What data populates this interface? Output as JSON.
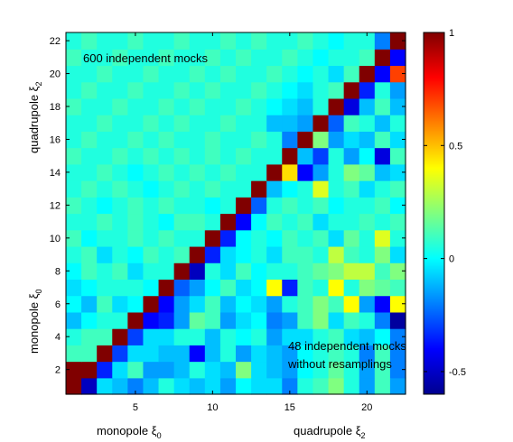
{
  "chart_data": {
    "type": "heatmap",
    "title": "",
    "colormap": "jet",
    "clim": [
      -0.6,
      1
    ],
    "grid": false,
    "n": 22,
    "x_ticks": [
      5,
      10,
      15,
      20
    ],
    "y_ticks": [
      2,
      4,
      6,
      8,
      10,
      12,
      14,
      16,
      18,
      20,
      22
    ],
    "colorbar_ticks": [
      {
        "value": 1,
        "label": "1"
      },
      {
        "value": 0.5,
        "label": "0.5"
      },
      {
        "value": 0,
        "label": "0"
      },
      {
        "value": -0.5,
        "label": "-0.5"
      }
    ],
    "x_sections": [
      {
        "label": "monopole",
        "sym": "ξ",
        "sub": "0"
      },
      {
        "label": "quadrupole",
        "sym": "ξ",
        "sub": "2"
      }
    ],
    "y_sections": [
      {
        "label": "monopole",
        "sym": "ξ",
        "sub": "0"
      },
      {
        "label": "quadrupole",
        "sym": "ξ",
        "sub": "2"
      }
    ],
    "annotations": {
      "upper": "600 independent mocks",
      "lower_line1": "48 independent mocks",
      "lower_line2": "without resamplings"
    },
    "matrix": [
      [
        1.0,
        -0.5,
        -0.05,
        -0.1,
        -0.2,
        -0.1,
        0.05,
        -0.05,
        -0.1,
        -0.05,
        -0.15,
        0.0,
        -0.05,
        -0.05,
        -0.2,
        0.05,
        0.1,
        0.2,
        0.05,
        -0.15,
        0.1,
        -0.15
      ],
      [
        1.0,
        1.0,
        -0.35,
        -0.05,
        0.1,
        -0.15,
        -0.15,
        -0.1,
        0.05,
        -0.05,
        -0.1,
        0.2,
        -0.05,
        -0.1,
        -0.15,
        0.0,
        0.05,
        0.15,
        0.05,
        -0.15,
        0.1,
        -0.2
      ],
      [
        0.1,
        0.1,
        1.0,
        -0.3,
        -0.05,
        -0.05,
        -0.1,
        -0.1,
        -0.4,
        -0.1,
        0.05,
        -0.15,
        -0.05,
        -0.1,
        -0.15,
        0.0,
        0.05,
        0.1,
        0.05,
        -0.2,
        0.1,
        -0.2
      ],
      [
        0.05,
        0.1,
        0.1,
        1.0,
        -0.3,
        -0.05,
        -0.05,
        0.05,
        0.05,
        -0.1,
        0.05,
        0.0,
        0.05,
        -0.15,
        -0.05,
        -0.05,
        0.05,
        0.1,
        -0.05,
        -0.1,
        0.0,
        -0.2
      ],
      [
        -0.1,
        0.0,
        0.05,
        0.05,
        1.0,
        -0.4,
        -0.35,
        -0.15,
        0.15,
        0.1,
        -0.15,
        -0.05,
        0.0,
        -0.2,
        -0.15,
        0.1,
        0.2,
        -0.05,
        0.1,
        0.05,
        -0.2,
        -0.55
      ],
      [
        0.0,
        -0.1,
        0.1,
        -0.05,
        0.0,
        1.0,
        -0.4,
        -0.15,
        -0.05,
        0.1,
        -0.1,
        0.0,
        -0.05,
        -0.15,
        0.05,
        0.1,
        0.2,
        0.1,
        0.4,
        -0.15,
        -0.4,
        0.4
      ],
      [
        -0.05,
        0.0,
        0.05,
        0.05,
        0.05,
        0.0,
        1.0,
        -0.25,
        -0.15,
        0.0,
        0.1,
        -0.05,
        0.0,
        0.4,
        -0.35,
        0.1,
        0.05,
        0.4,
        0.05,
        0.2,
        0.15,
        0.1
      ],
      [
        0.0,
        0.1,
        0.05,
        0.1,
        -0.05,
        0.05,
        0.05,
        1.0,
        -0.5,
        0.05,
        -0.05,
        0.1,
        0.0,
        0.05,
        0.05,
        0.1,
        0.15,
        0.2,
        0.3,
        0.3,
        0.1,
        0.2
      ],
      [
        0.05,
        0.1,
        -0.05,
        0.05,
        0.0,
        0.1,
        0.05,
        0.1,
        1.0,
        -0.35,
        -0.05,
        0.0,
        0.05,
        -0.05,
        0.1,
        0.1,
        0.05,
        0.3,
        0.1,
        0.05,
        0.2,
        -0.05
      ],
      [
        0.1,
        0.0,
        0.05,
        0.05,
        0.1,
        0.05,
        0.1,
        0.05,
        0.05,
        1.0,
        -0.35,
        0.0,
        0.05,
        0.0,
        0.1,
        0.05,
        0.1,
        -0.05,
        0.15,
        0.05,
        0.35,
        0.05
      ],
      [
        0.05,
        0.05,
        0.1,
        0.05,
        0.1,
        0.05,
        0.0,
        0.1,
        0.1,
        0.05,
        1.0,
        -0.4,
        0.0,
        0.1,
        0.05,
        0.1,
        -0.05,
        0.05,
        0.05,
        0.1,
        0.05,
        0.1
      ],
      [
        0.1,
        0.05,
        0.0,
        0.05,
        0.1,
        0.05,
        0.1,
        0.05,
        0.05,
        0.0,
        0.05,
        1.0,
        -0.25,
        0.05,
        0.1,
        0.05,
        0.1,
        0.0,
        0.05,
        0.05,
        0.1,
        0.0
      ],
      [
        0.05,
        0.1,
        0.05,
        0.1,
        0.05,
        0.0,
        0.05,
        0.1,
        0.05,
        0.1,
        0.05,
        0.05,
        1.0,
        -0.1,
        0.0,
        0.05,
        0.35,
        0.05,
        0.1,
        -0.05,
        0.05,
        0.1
      ],
      [
        0.05,
        0.05,
        0.1,
        0.05,
        0.0,
        0.05,
        0.1,
        0.05,
        0.1,
        0.05,
        0.1,
        0.05,
        0.05,
        1.0,
        0.45,
        -0.4,
        -0.15,
        0.05,
        0.2,
        0.15,
        -0.1,
        -0.05
      ],
      [
        0.1,
        0.05,
        0.05,
        0.1,
        0.05,
        0.1,
        0.05,
        0.1,
        0.05,
        0.1,
        0.05,
        0.1,
        0.05,
        0.05,
        1.0,
        -0.1,
        -0.3,
        0.05,
        -0.15,
        0.0,
        -0.45,
        0.1
      ],
      [
        0.05,
        0.1,
        0.05,
        0.05,
        0.1,
        0.05,
        0.1,
        0.05,
        0.05,
        0.1,
        0.05,
        0.05,
        0.1,
        0.05,
        -0.2,
        1.0,
        0.2,
        -0.15,
        -0.05,
        -0.1,
        0.1,
        -0.05
      ],
      [
        0.05,
        0.05,
        0.1,
        0.05,
        0.05,
        0.1,
        0.05,
        0.1,
        0.05,
        0.05,
        0.1,
        0.05,
        0.05,
        -0.1,
        -0.1,
        -0.15,
        1.0,
        -0.25,
        0.1,
        0.05,
        -0.1,
        0.05
      ],
      [
        0.1,
        0.05,
        0.05,
        0.1,
        0.05,
        0.05,
        0.1,
        0.05,
        0.1,
        0.05,
        0.05,
        0.1,
        0.05,
        0.0,
        -0.05,
        -0.1,
        0.05,
        1.0,
        -0.45,
        -0.1,
        0.1,
        -0.1
      ],
      [
        0.05,
        0.1,
        0.05,
        0.05,
        0.1,
        0.05,
        0.05,
        0.1,
        0.05,
        0.1,
        0.05,
        0.05,
        0.1,
        0.05,
        0.0,
        -0.05,
        0.05,
        0.1,
        1.0,
        -0.35,
        0.05,
        -0.15
      ],
      [
        0.05,
        0.05,
        0.1,
        0.05,
        0.05,
        0.1,
        0.05,
        0.05,
        0.1,
        0.05,
        0.1,
        0.05,
        0.05,
        0.1,
        0.05,
        0.0,
        0.05,
        -0.05,
        0.1,
        1.0,
        -0.4,
        0.7
      ],
      [
        0.1,
        0.05,
        0.05,
        0.1,
        0.05,
        0.05,
        0.1,
        0.05,
        0.05,
        0.1,
        0.05,
        0.1,
        0.05,
        0.05,
        0.1,
        0.05,
        0.0,
        0.05,
        0.05,
        0.1,
        1.0,
        -0.4
      ],
      [
        0.05,
        0.1,
        0.05,
        0.05,
        0.1,
        0.05,
        0.05,
        0.1,
        0.05,
        0.05,
        0.1,
        0.05,
        0.1,
        0.05,
        0.05,
        0.1,
        0.05,
        0.0,
        0.05,
        0.05,
        -0.2,
        1.0
      ]
    ]
  }
}
